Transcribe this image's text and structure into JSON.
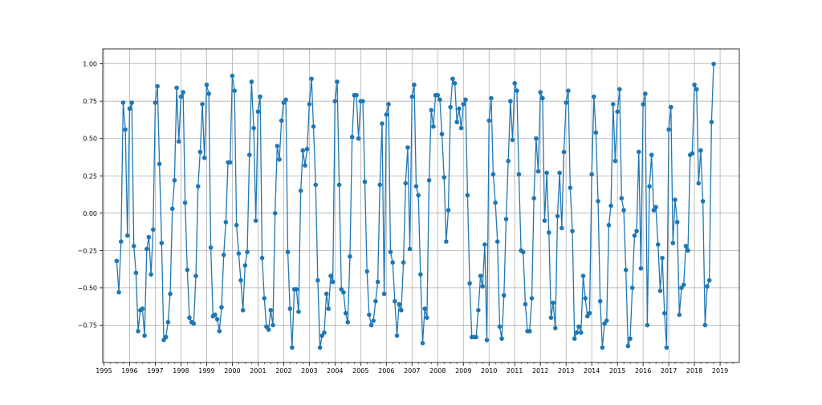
{
  "chart_data": {
    "type": "line",
    "title": "",
    "xlabel": "",
    "ylabel": "",
    "xlim": [
      "1994-12-15",
      "2019-10-01"
    ],
    "ylim": [
      -1.0,
      1.1
    ],
    "grid": true,
    "colors": {
      "series": "#1f77b4",
      "grid": "#b0b0b0",
      "axis": "#000000"
    },
    "x_ticks": [
      "1995",
      "1996",
      "1997",
      "1998",
      "1999",
      "2000",
      "2001",
      "2002",
      "2003",
      "2004",
      "2005",
      "2006",
      "2007",
      "2008",
      "2009",
      "2010",
      "2011",
      "2012",
      "2013",
      "2014",
      "2015",
      "2016",
      "2017",
      "2018",
      "2019"
    ],
    "y_ticks": [
      {
        "value": 1.0,
        "label": "1.00"
      },
      {
        "value": 0.75,
        "label": "0.75"
      },
      {
        "value": 0.5,
        "label": "0.50"
      },
      {
        "value": 0.25,
        "label": "0.25"
      },
      {
        "value": 0.0,
        "label": "0.00"
      },
      {
        "value": -0.25,
        "label": "−0.25"
      },
      {
        "value": -0.5,
        "label": "−0.50"
      },
      {
        "value": -0.75,
        "label": "−0.75"
      }
    ],
    "series": [
      {
        "marker": "circle",
        "start": "1995-07",
        "interval": "month",
        "values": [
          -0.32,
          -0.53,
          -0.19,
          0.74,
          0.56,
          -0.15,
          0.7,
          0.74,
          -0.22,
          -0.4,
          -0.79,
          -0.65,
          -0.64,
          -0.82,
          -0.24,
          -0.16,
          -0.41,
          -0.11,
          0.74,
          0.85,
          0.33,
          -0.2,
          -0.85,
          -0.83,
          -0.73,
          -0.54,
          0.03,
          0.22,
          0.84,
          0.48,
          0.78,
          0.81,
          0.07,
          -0.38,
          -0.7,
          -0.73,
          -0.74,
          -0.42,
          0.18,
          0.41,
          0.73,
          0.37,
          0.86,
          0.8,
          -0.23,
          -0.69,
          -0.68,
          -0.71,
          -0.79,
          -0.63,
          -0.28,
          -0.06,
          0.34,
          0.34,
          0.92,
          0.82,
          -0.08,
          -0.27,
          -0.45,
          -0.65,
          -0.35,
          -0.26,
          0.39,
          0.88,
          0.57,
          -0.05,
          0.68,
          0.78,
          -0.3,
          -0.57,
          -0.76,
          -0.78,
          -0.65,
          -0.75,
          0.0,
          0.45,
          0.36,
          0.62,
          0.74,
          0.76,
          -0.26,
          -0.64,
          -0.9,
          -0.51,
          -0.51,
          -0.66,
          0.15,
          0.42,
          0.32,
          0.43,
          0.73,
          0.9,
          0.58,
          0.19,
          -0.45,
          -0.9,
          -0.82,
          -0.8,
          -0.54,
          -0.64,
          -0.42,
          -0.46,
          0.75,
          0.88,
          0.19,
          -0.51,
          -0.53,
          -0.67,
          -0.73,
          -0.29,
          0.51,
          0.79,
          0.79,
          0.5,
          0.75,
          0.75,
          0.21,
          -0.39,
          -0.68,
          -0.75,
          -0.72,
          -0.59,
          -0.46,
          0.19,
          0.6,
          -0.54,
          0.66,
          0.73,
          -0.26,
          -0.33,
          -0.59,
          -0.82,
          -0.61,
          -0.65,
          -0.33,
          0.2,
          0.44,
          -0.24,
          0.78,
          0.86,
          0.18,
          0.12,
          -0.41,
          -0.87,
          -0.64,
          -0.7,
          0.22,
          0.69,
          0.58,
          0.79,
          0.79,
          0.76,
          0.53,
          0.24,
          -0.19,
          0.02,
          0.71,
          0.9,
          0.87,
          0.61,
          0.7,
          0.57,
          0.73,
          0.76,
          0.12,
          -0.47,
          -0.83,
          -0.83,
          -0.83,
          -0.65,
          -0.42,
          -0.49,
          -0.21,
          -0.85,
          0.62,
          0.77,
          0.26,
          0.07,
          -0.19,
          -0.76,
          -0.84,
          -0.55,
          -0.04,
          0.35,
          0.75,
          0.49,
          0.87,
          0.82,
          0.26,
          -0.25,
          -0.26,
          -0.61,
          -0.79,
          -0.79,
          -0.57,
          0.1,
          0.5,
          0.28,
          0.81,
          0.77,
          -0.05,
          0.27,
          -0.13,
          -0.7,
          -0.6,
          -0.77,
          -0.02,
          0.27,
          -0.1,
          0.41,
          0.74,
          0.82,
          0.17,
          -0.12,
          -0.84,
          -0.8,
          -0.76,
          -0.8,
          -0.42,
          -0.57,
          -0.69,
          -0.67,
          0.26,
          0.78,
          0.54,
          0.08,
          -0.59,
          -0.9,
          -0.74,
          -0.72,
          -0.08,
          0.05,
          0.73,
          0.35,
          0.68,
          0.83,
          0.1,
          0.02,
          -0.38,
          -0.89,
          -0.84,
          -0.5,
          -0.15,
          -0.12,
          0.41,
          -0.37,
          0.73,
          0.8,
          -0.75,
          0.18,
          0.39,
          0.02,
          0.04,
          -0.21,
          -0.52,
          -0.3,
          -0.67,
          -0.9,
          0.56,
          0.71,
          -0.2,
          0.09,
          -0.06,
          -0.68,
          -0.5,
          -0.48,
          -0.22,
          -0.25,
          0.39,
          0.4,
          0.86,
          0.83,
          0.2,
          0.42,
          0.08,
          -0.75,
          -0.49,
          -0.45,
          0.61,
          1.0
        ]
      }
    ]
  }
}
